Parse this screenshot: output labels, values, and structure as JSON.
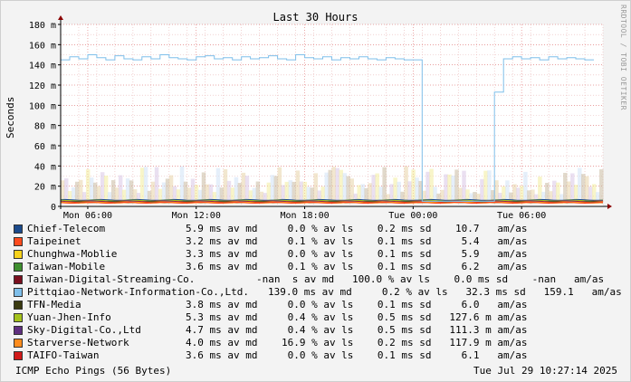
{
  "watermark": "RRDTOOL / TOBI OETIKER",
  "footer": {
    "left": "ICMP Echo Pings (56 Bytes)",
    "right": "Tue Jul 29 10:27:14 2025"
  },
  "colors": {
    "background": "#f3f3f3",
    "canvas": "#ffffff",
    "grid_minor": "#e8b5b5",
    "grid_major": "#e07070",
    "axis": "#000000",
    "arrow": "#8b0000"
  },
  "legend": [
    {
      "name": "Chief-Telecom",
      "color": "#1c4b8c",
      "stats": "5.9 ms av md     0.0 % av ls    0.2 ms sd    10.7   am/as"
    },
    {
      "name": "Taipeinet",
      "color": "#ff4b1e",
      "stats": "3.2 ms av md     0.1 % av ls    0.1 ms sd     5.4   am/as"
    },
    {
      "name": "Chunghwa-Moblie",
      "color": "#f7d21c",
      "stats": "3.3 ms av md     0.0 % av ls    0.1 ms sd     5.9   am/as"
    },
    {
      "name": "Taiwan-Mobile",
      "color": "#3f8f2f",
      "stats": "3.6 ms av md     0.1 % av ls    0.1 ms sd     6.2   am/as"
    },
    {
      "name": "Taiwan-Digital-Streaming-Co.",
      "color": "#7a0f1f",
      "stats": "-nan  s av md   100.0 % av ls    0.0 ms sd    -nan   am/as"
    },
    {
      "name": "Pittqiao-Network-Information-Co.,Ltd.",
      "color": "#7fbfea",
      "stats": "139.0 ms av md     0.2 % av ls   32.3 ms sd   159.1   am/as"
    },
    {
      "name": "TFN-Media",
      "color": "#3a3a10",
      "stats": "3.8 ms av md     0.0 % av ls    0.1 ms sd     6.0   am/as"
    },
    {
      "name": "Yuan-Jhen-Info",
      "color": "#a4c21c",
      "stats": "5.3 ms av md     0.4 % av ls    0.5 ms sd   127.6 m am/as"
    },
    {
      "name": "Sky-Digital-Co.,Ltd",
      "color": "#5f2f7f",
      "stats": "4.7 ms av md     0.4 % av ls    0.5 ms sd   111.3 m am/as"
    },
    {
      "name": "Starverse-Network",
      "color": "#ff8c1e",
      "stats": "4.0 ms av md    16.9 % av ls    0.2 ms sd   117.9 m am/as"
    },
    {
      "name": "TAIFO-Taiwan",
      "color": "#d11a1a",
      "stats": "3.6 ms av md     0.0 % av ls    0.1 ms sd     6.1   am/as"
    }
  ],
  "chart_data": {
    "type": "line",
    "title": "Last 30 Hours",
    "ylabel": "Seconds",
    "xlabel": "",
    "ylim": [
      0,
      0.18
    ],
    "yticks": [
      0,
      0.02,
      0.04,
      0.06,
      0.08,
      0.1,
      0.12,
      0.14,
      0.16,
      0.18
    ],
    "ytick_labels": [
      "0",
      "20 m",
      "40 m",
      "60 m",
      "80 m",
      "100 m",
      "120 m",
      "140 m",
      "160 m",
      "180 m"
    ],
    "x_tick_labels": [
      "Mon 06:00",
      "Mon 12:00",
      "Mon 18:00",
      "Tue 00:00",
      "Tue 06:00"
    ],
    "x_range_hours": [
      0,
      30
    ],
    "x_tick_hours": [
      1.5,
      7.5,
      13.5,
      19.5,
      25.5
    ],
    "grid": true,
    "series": [
      {
        "name": "Pittqiao-Network-Information-Co.,Ltd.",
        "color": "#7fbfea",
        "x": [
          0,
          0.5,
          1,
          1.5,
          2,
          2.5,
          3,
          3.5,
          4,
          4.5,
          5,
          5.5,
          6,
          6.5,
          7,
          7.5,
          8,
          8.5,
          9,
          9.5,
          10,
          10.5,
          11,
          11.5,
          12,
          12.5,
          13,
          13.5,
          14,
          14.5,
          15,
          15.5,
          16,
          16.5,
          17,
          17.5,
          18,
          18.5,
          19,
          19.5,
          20,
          20.5,
          21,
          21.5,
          22,
          22.5,
          23,
          23.5,
          24,
          24.5,
          25,
          25.5,
          26,
          26.5,
          27,
          27.5,
          28,
          28.5,
          29,
          29.5
        ],
        "values": [
          0.145,
          0.148,
          0.146,
          0.15,
          0.147,
          0.145,
          0.149,
          0.146,
          0.145,
          0.148,
          0.146,
          0.15,
          0.147,
          0.146,
          0.145,
          0.148,
          0.149,
          0.146,
          0.147,
          0.145,
          0.148,
          0.146,
          0.147,
          0.149,
          0.146,
          0.145,
          0.15,
          0.147,
          0.146,
          0.148,
          0.145,
          0.147,
          0.146,
          0.148,
          0.146,
          0.145,
          0.147,
          0.146,
          0.145,
          0.145,
          0.005,
          0.005,
          0.005,
          0.005,
          0.005,
          0.005,
          0.005,
          0.005,
          0.113,
          0.146,
          0.148,
          0.146,
          0.147,
          0.145,
          0.148,
          0.146,
          0.147,
          0.146,
          0.145,
          0.145
        ]
      },
      {
        "name": "Chief-Telecom",
        "color": "#1c4b8c",
        "value": 0.0059
      },
      {
        "name": "Yuan-Jhen-Info",
        "color": "#a4c21c",
        "value": 0.0053
      },
      {
        "name": "Sky-Digital-Co.,Ltd",
        "color": "#5f2f7f",
        "value": 0.0047
      },
      {
        "name": "Starverse-Network",
        "color": "#ff8c1e",
        "value": 0.004
      },
      {
        "name": "TFN-Media",
        "color": "#3a3a10",
        "value": 0.0038
      },
      {
        "name": "Taiwan-Mobile",
        "color": "#3f8f2f",
        "value": 0.0036
      },
      {
        "name": "TAIFO-Taiwan",
        "color": "#d11a1a",
        "value": 0.0036
      },
      {
        "name": "Chunghwa-Moblie",
        "color": "#f7d21c",
        "value": 0.0033
      },
      {
        "name": "Taipeinet",
        "color": "#ff4b1e",
        "value": 0.0032
      }
    ]
  }
}
